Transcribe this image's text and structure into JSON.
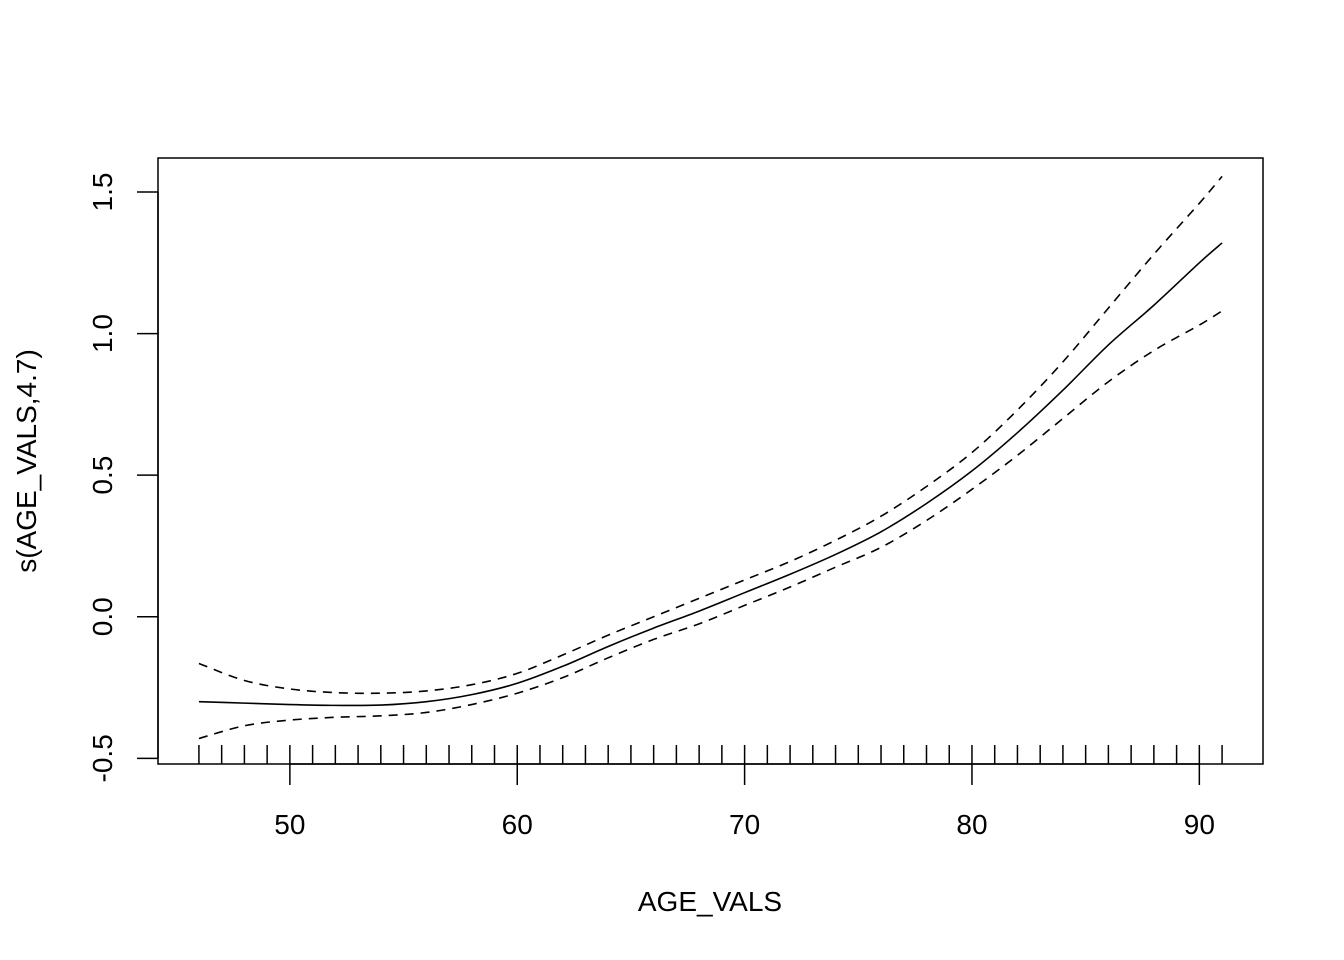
{
  "chart_data": {
    "type": "line",
    "title": "",
    "xlabel": "AGE_VALS",
    "ylabel": "s(AGE_VALS,4.7)",
    "xlim": [
      44.2,
      92.8
    ],
    "ylim": [
      -0.52,
      1.62
    ],
    "x_ticks": [
      50,
      60,
      70,
      80,
      90
    ],
    "x_tick_labels": [
      "50",
      "60",
      "70",
      "80",
      "90"
    ],
    "y_ticks": [
      -0.5,
      0.0,
      0.5,
      1.0,
      1.5
    ],
    "y_tick_labels": [
      "-0.5",
      "0.0",
      "0.5",
      "1.0",
      "1.5"
    ],
    "grid": false,
    "legend": "none",
    "series": [
      {
        "role": "fit",
        "style": "solid",
        "x": [
          46,
          48,
          50,
          52,
          54,
          56,
          58,
          60,
          62,
          64,
          66,
          68,
          70,
          72,
          74,
          76,
          78,
          80,
          82,
          84,
          86,
          88,
          90,
          91
        ],
        "y": [
          -0.3,
          -0.305,
          -0.31,
          -0.313,
          -0.312,
          -0.3,
          -0.275,
          -0.235,
          -0.175,
          -0.105,
          -0.04,
          0.02,
          0.085,
          0.15,
          0.22,
          0.3,
          0.4,
          0.515,
          0.65,
          0.8,
          0.96,
          1.1,
          1.25,
          1.32
        ]
      },
      {
        "role": "upper",
        "style": "dashed",
        "x": [
          46,
          48,
          50,
          52,
          54,
          56,
          58,
          60,
          62,
          64,
          66,
          68,
          70,
          72,
          74,
          76,
          78,
          80,
          82,
          84,
          86,
          88,
          90,
          91
        ],
        "y": [
          -0.165,
          -0.225,
          -0.255,
          -0.268,
          -0.27,
          -0.262,
          -0.24,
          -0.2,
          -0.135,
          -0.065,
          0.0,
          0.065,
          0.13,
          0.195,
          0.27,
          0.355,
          0.46,
          0.58,
          0.73,
          0.9,
          1.09,
          1.28,
          1.46,
          1.555
        ]
      },
      {
        "role": "lower",
        "style": "dashed",
        "x": [
          46,
          48,
          50,
          52,
          54,
          56,
          58,
          60,
          62,
          64,
          66,
          68,
          70,
          72,
          74,
          76,
          78,
          80,
          82,
          84,
          86,
          88,
          90,
          91
        ],
        "y": [
          -0.43,
          -0.385,
          -0.365,
          -0.355,
          -0.35,
          -0.338,
          -0.31,
          -0.27,
          -0.215,
          -0.145,
          -0.08,
          -0.025,
          0.04,
          0.105,
          0.175,
          0.245,
          0.34,
          0.45,
          0.57,
          0.7,
          0.83,
          0.94,
          1.03,
          1.08
        ]
      }
    ],
    "rug_x": [
      46,
      47,
      48,
      49,
      50,
      51,
      52,
      53,
      54,
      55,
      56,
      57,
      58,
      59,
      60,
      61,
      62,
      63,
      64,
      65,
      66,
      67,
      68,
      69,
      70,
      71,
      72,
      73,
      74,
      75,
      76,
      77,
      78,
      79,
      80,
      81,
      82,
      83,
      84,
      85,
      86,
      87,
      88,
      89,
      90,
      91
    ]
  }
}
